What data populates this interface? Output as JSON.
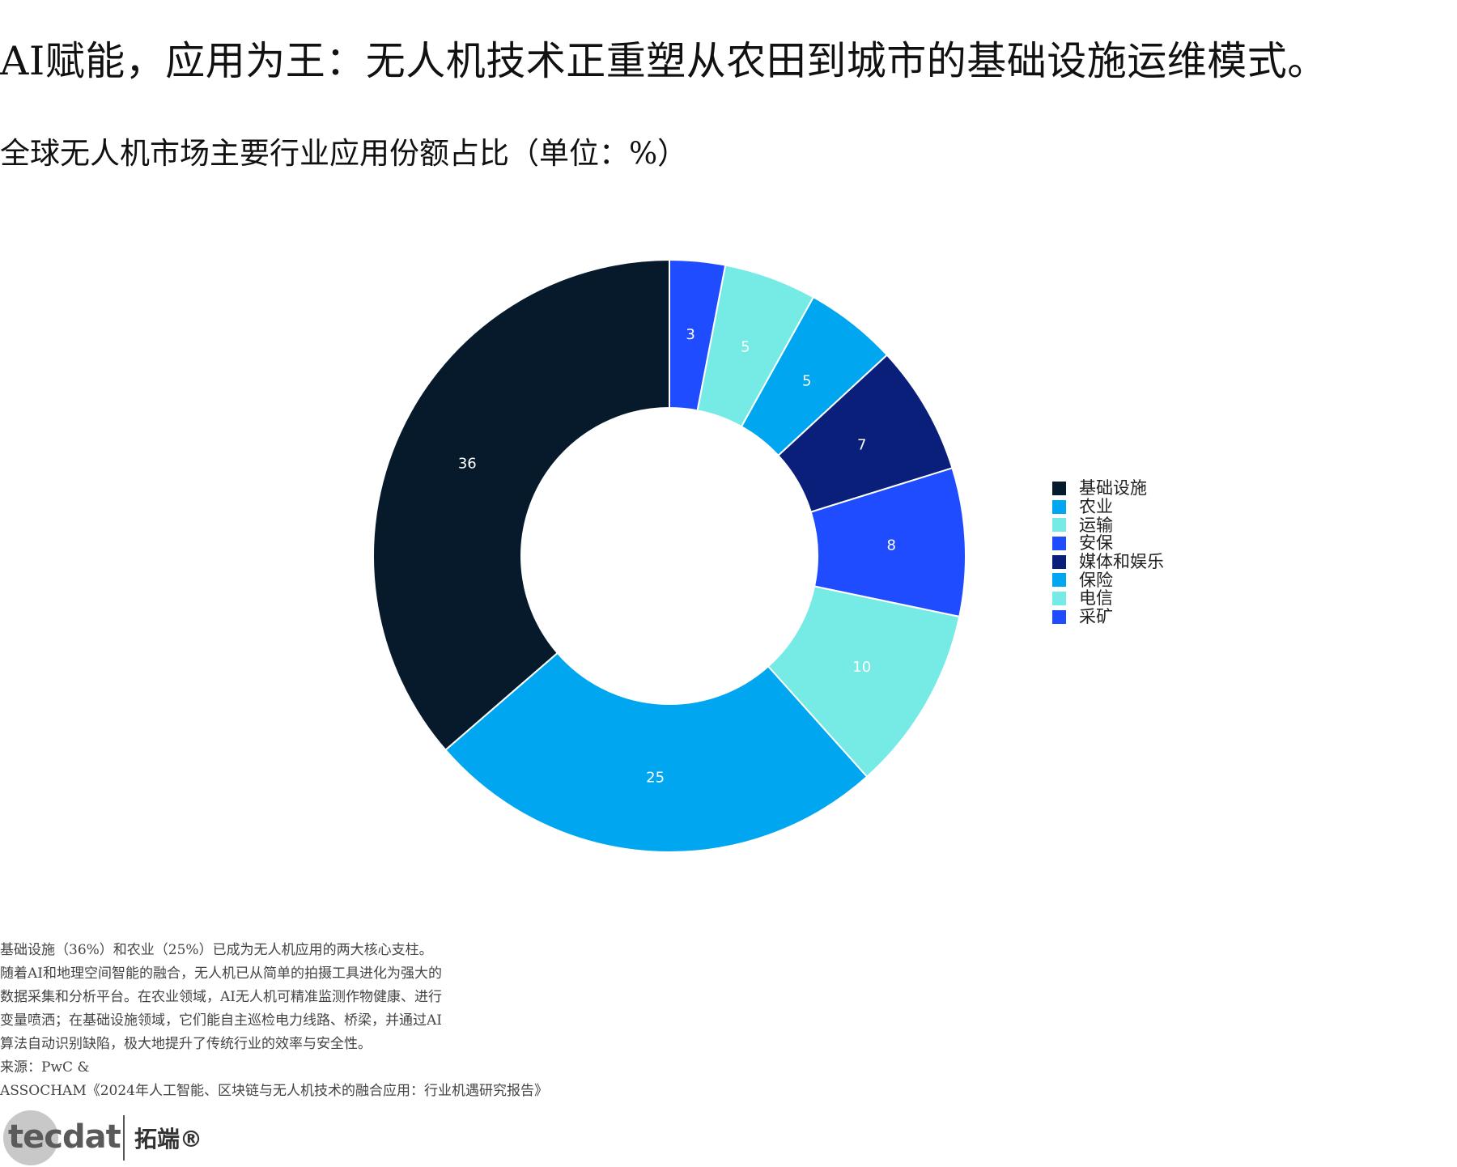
{
  "headline": "AI赋能，应用为王：无人机技术正重塑从农田到城市的基础设施运维模式。",
  "subtitle": "全球无人机市场主要行业应用份额占比（单位：%）",
  "chart_data": {
    "type": "pie",
    "variant": "donut",
    "title": "全球无人机市场主要行业应用份额占比（单位：%）",
    "legend_position": "right",
    "series": [
      {
        "name": "基础设施",
        "value": 36,
        "color": "#061a2b"
      },
      {
        "name": "农业",
        "value": 25,
        "color": "#00a6f0"
      },
      {
        "name": "运输",
        "value": 10,
        "color": "#76ebe5"
      },
      {
        "name": "安保",
        "value": 8,
        "color": "#1f4cff"
      },
      {
        "name": "媒体和娱乐",
        "value": 7,
        "color": "#0a1f7a"
      },
      {
        "name": "保险",
        "value": 5,
        "color": "#00a6f0"
      },
      {
        "name": "电信",
        "value": 5,
        "color": "#76ebe5"
      },
      {
        "name": "采矿",
        "value": 3,
        "color": "#1f4cff"
      }
    ],
    "slice_order_clockwise_from_top": [
      "采矿",
      "电信",
      "保险",
      "媒体和娱乐",
      "安保",
      "运输",
      "农业",
      "基础设施"
    ]
  },
  "note": {
    "lines": [
      "基础设施（36%）和农业（25%）已成为无人机应用的两大核心支柱。",
      "随着AI和地理空间智能的融合，无人机已从简单的拍摄工具进化为强大的",
      "数据采集和分析平台。在农业领域，AI无人机可精准监测作物健康、进行",
      "变量喷洒；在基础设施领域，它们能自主巡检电力线路、桥梁，并通过AI",
      "算法自动识别缺陷，极大地提升了传统行业的效率与安全性。"
    ]
  },
  "source": {
    "line1": "来源：PwC &",
    "line2": "ASSOCHAM《2024年人工智能、区块链与无人机技术的融合应用：行业机遇研究报告》"
  },
  "logo": {
    "wordmark": "tecdat",
    "brand": "拓端®"
  }
}
